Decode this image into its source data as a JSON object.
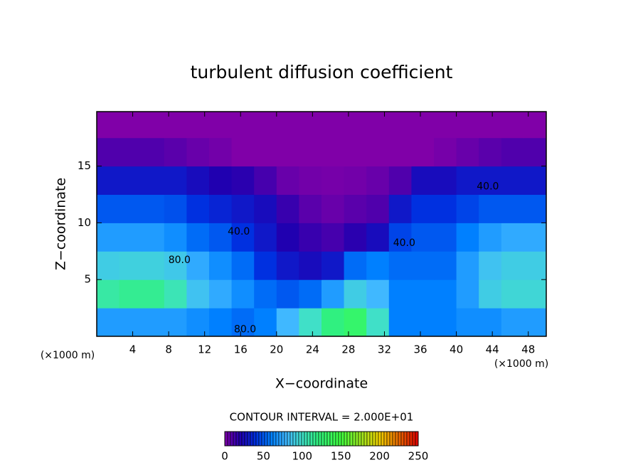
{
  "chart_data": {
    "type": "heatmap",
    "title": "turbulent diffusion coefficient",
    "x_label": "X−coordinate",
    "y_label": "Z−coordinate",
    "x_unit": "(×1000 m)",
    "y_unit": "(×1000 m)",
    "contour_note": "CONTOUR INTERVAL = 2.000E+01",
    "xlim": [
      0,
      50
    ],
    "ylim": [
      0,
      19.8
    ],
    "xticks": [
      4,
      8,
      12,
      16,
      20,
      24,
      28,
      32,
      36,
      40,
      44,
      48
    ],
    "yticks": [
      5,
      10,
      15
    ],
    "x": [
      1.25,
      3.75,
      6.25,
      8.75,
      11.25,
      13.75,
      16.25,
      18.75,
      21.25,
      23.75,
      26.25,
      28.75,
      31.25,
      33.75,
      36.25,
      38.75,
      41.25,
      43.75,
      46.25,
      48.75
    ],
    "y": [
      1.25,
      3.75,
      6.25,
      8.75,
      11.25,
      13.75,
      16.25,
      18.75
    ],
    "z": [
      [
        70,
        70,
        70,
        70,
        65,
        60,
        55,
        60,
        80,
        100,
        120,
        130,
        100,
        60,
        60,
        60,
        65,
        65,
        70,
        70
      ],
      [
        110,
        115,
        115,
        105,
        85,
        75,
        65,
        55,
        50,
        55,
        70,
        90,
        80,
        60,
        60,
        60,
        70,
        90,
        95,
        95
      ],
      [
        90,
        92,
        92,
        88,
        75,
        65,
        55,
        40,
        30,
        25,
        30,
        55,
        60,
        55,
        55,
        55,
        70,
        85,
        90,
        90
      ],
      [
        70,
        70,
        70,
        65,
        55,
        50,
        40,
        30,
        20,
        15,
        12,
        18,
        25,
        45,
        50,
        50,
        60,
        70,
        75,
        75
      ],
      [
        50,
        50,
        50,
        48,
        40,
        35,
        30,
        25,
        15,
        8,
        5,
        8,
        10,
        30,
        40,
        40,
        45,
        50,
        50,
        50
      ],
      [
        30,
        30,
        30,
        30,
        25,
        20,
        18,
        12,
        5,
        3,
        2,
        3,
        5,
        10,
        25,
        25,
        30,
        30,
        30,
        30
      ],
      [
        10,
        10,
        10,
        8,
        5,
        3,
        0,
        0,
        0,
        0,
        0,
        0,
        0,
        0,
        0,
        2,
        5,
        8,
        10,
        10
      ],
      [
        0,
        0,
        0,
        0,
        0,
        0,
        0,
        0,
        0,
        0,
        0,
        0,
        0,
        0,
        0,
        0,
        0,
        0,
        0,
        0
      ]
    ],
    "colorscale": [
      [
        0,
        "#8000a8"
      ],
      [
        20,
        "#2000b0"
      ],
      [
        40,
        "#0030e0"
      ],
      [
        60,
        "#0080ff"
      ],
      [
        80,
        "#40b8ff"
      ],
      [
        100,
        "#40e0c8"
      ],
      [
        120,
        "#30f080"
      ],
      [
        150,
        "#40ff40"
      ],
      [
        200,
        "#f0d000"
      ],
      [
        250,
        "#e00000"
      ]
    ],
    "clim": [
      0,
      250
    ],
    "colorbar_ticks": [
      0,
      50,
      100,
      150,
      200,
      250
    ],
    "annotations": [
      {
        "text": "40.0",
        "x": 15.8,
        "y": 9.2
      },
      {
        "text": "80.0",
        "x": 9.2,
        "y": 6.7
      },
      {
        "text": "80.0",
        "x": 16.5,
        "y": 0.6
      },
      {
        "text": "40.0",
        "x": 34.2,
        "y": 8.2
      },
      {
        "text": "40.0",
        "x": 43.5,
        "y": 13.2
      }
    ]
  }
}
